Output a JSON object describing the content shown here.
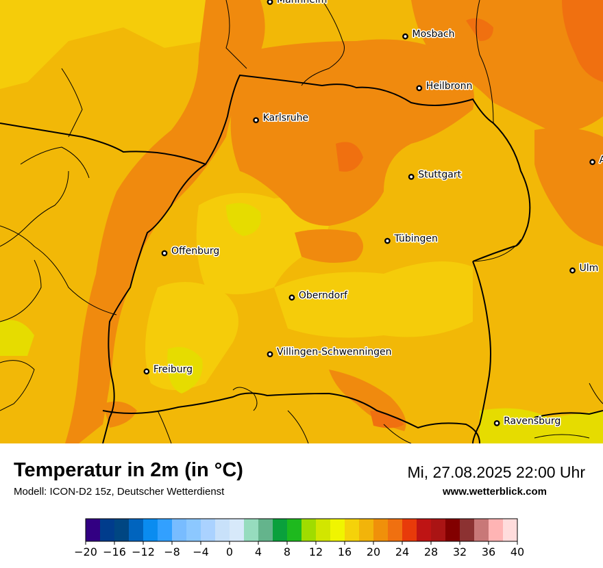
{
  "map": {
    "cities": [
      {
        "name": "Mannheim",
        "x": 8.47,
        "y": 49.49
      },
      {
        "name": "Mosbach",
        "x": 9.15,
        "y": 49.35
      },
      {
        "name": "Heilbronn",
        "x": 9.22,
        "y": 49.14
      },
      {
        "name": "Karlsruhe",
        "x": 8.4,
        "y": 49.01
      },
      {
        "name": "Aalen",
        "x": 10.09,
        "y": 48.84
      },
      {
        "name": "Stuttgart",
        "x": 9.18,
        "y": 48.78
      },
      {
        "name": "Tübingen",
        "x": 9.06,
        "y": 48.52
      },
      {
        "name": "Offenburg",
        "x": 7.94,
        "y": 48.47
      },
      {
        "name": "Ulm",
        "x": 9.99,
        "y": 48.4
      },
      {
        "name": "Oberndorf",
        "x": 8.58,
        "y": 48.29
      },
      {
        "name": "Villingen-Schwenningen",
        "x": 8.47,
        "y": 48.06
      },
      {
        "name": "Freiburg",
        "x": 7.85,
        "y": 47.99
      },
      {
        "name": "Ravensburg",
        "x": 9.61,
        "y": 47.78
      }
    ],
    "colors": {
      "temp_14_16": "#e6dc00",
      "temp_16_18": "#f5cc0a",
      "temp_18_20": "#f2b807",
      "temp_20_22": "#f08a0e",
      "temp_22_24": "#f07010",
      "border": "#000000"
    }
  },
  "footer": {
    "title": "Temperatur in 2m (in °C)",
    "subtitle": "Modell: ICON-D2 15z, Deutscher Wetterdienst",
    "datetime": "Mi, 27.08.2025 22:00 Uhr",
    "site": "www.wetterblick.com"
  },
  "legend": {
    "colors": [
      "#320082",
      "#003c8c",
      "#004682",
      "#0064be",
      "#0a8cf0",
      "#32a0ff",
      "#78bcff",
      "#8cc8ff",
      "#aad2ff",
      "#c8e1fa",
      "#d7e9fa",
      "#96dcbe",
      "#64b48c",
      "#0aa03c",
      "#1eb91e",
      "#a0dc00",
      "#d2e600",
      "#f0f500",
      "#f5d20a",
      "#f2b40a",
      "#f0900a",
      "#f07010",
      "#e83a0a",
      "#be1414",
      "#aa1414",
      "#820000",
      "#8c3232",
      "#c87878",
      "#ffb4b4",
      "#ffdcdc"
    ],
    "ticks": [
      "−20",
      "−16",
      "−12",
      "−8",
      "−4",
      "0",
      "4",
      "8",
      "12",
      "16",
      "20",
      "24",
      "28",
      "32",
      "36",
      "40"
    ],
    "min": -20,
    "max": 40
  }
}
